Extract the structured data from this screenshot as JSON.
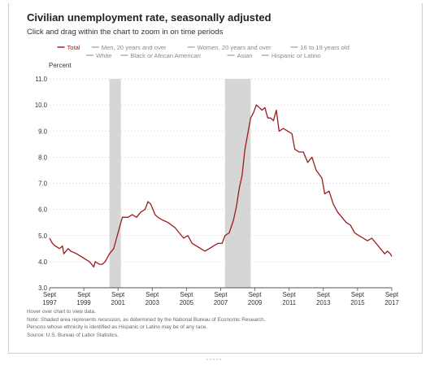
{
  "title": "Civilian unemployment rate, seasonally adjusted",
  "subtitle": "Click and drag within the chart to zoom in on time periods",
  "notes": [
    "Hover over chart to view data.",
    "Note: Shaded area represents recession, as determined by the National Bureau of Economic Research.",
    "Persons whose ethnicity is identified as Hispanic or Latino may be of any race.",
    "Source: U.S. Bureau of Labor Statistics."
  ],
  "colors": {
    "series": "#9b1b1e",
    "legend_inactive": "#8a8a8a",
    "recession": "#d6d6d6",
    "grid": "#d4d4d4",
    "axis": "#555555"
  },
  "chart_data": {
    "type": "line",
    "ylabel": "Percent",
    "ylim": [
      3.0,
      11.0
    ],
    "yticks": [
      "3.0",
      "4.0",
      "5.0",
      "6.0",
      "7.0",
      "8.0",
      "9.0",
      "10.0",
      "11.0"
    ],
    "xlim": [
      1997.667,
      2017.667
    ],
    "xticks": [
      {
        "x": 1997.667,
        "month": "Sept",
        "year": "1997"
      },
      {
        "x": 1999.667,
        "month": "Sept",
        "year": "1999"
      },
      {
        "x": 2001.667,
        "month": "Sept",
        "year": "2001"
      },
      {
        "x": 2003.667,
        "month": "Sept",
        "year": "2003"
      },
      {
        "x": 2005.667,
        "month": "Sept",
        "year": "2005"
      },
      {
        "x": 2007.667,
        "month": "Sept",
        "year": "2007"
      },
      {
        "x": 2009.667,
        "month": "Sept",
        "year": "2009"
      },
      {
        "x": 2011.667,
        "month": "Sept",
        "year": "2011"
      },
      {
        "x": 2013.667,
        "month": "Sept",
        "year": "2013"
      },
      {
        "x": 2015.667,
        "month": "Sept",
        "year": "2015"
      },
      {
        "x": 2017.667,
        "month": "Sept",
        "year": "2017"
      }
    ],
    "grid": true,
    "legend_position": "top",
    "legend": [
      {
        "name": "Total",
        "active": true
      },
      {
        "name": "Men, 20 years and over",
        "active": false
      },
      {
        "name": "Women, 20 years and over",
        "active": false
      },
      {
        "name": "16 to 19 years old",
        "active": false
      },
      {
        "name": "White",
        "active": false
      },
      {
        "name": "Black or African American",
        "active": false
      },
      {
        "name": "Asian",
        "active": false
      },
      {
        "name": "Hispanic or Latino",
        "active": false
      }
    ],
    "recessions": [
      [
        2001.167,
        2001.833
      ],
      [
        2007.917,
        2009.417
      ]
    ],
    "series": [
      {
        "name": "Total",
        "points": [
          [
            1997.667,
            4.9
          ],
          [
            1997.833,
            4.7
          ],
          [
            1998.0,
            4.6
          ],
          [
            1998.25,
            4.5
          ],
          [
            1998.417,
            4.6
          ],
          [
            1998.5,
            4.3
          ],
          [
            1998.75,
            4.5
          ],
          [
            1998.917,
            4.4
          ],
          [
            1999.25,
            4.3
          ],
          [
            1999.5,
            4.2
          ],
          [
            1999.75,
            4.1
          ],
          [
            2000.0,
            4.0
          ],
          [
            2000.25,
            3.8
          ],
          [
            2000.333,
            4.0
          ],
          [
            2000.583,
            3.9
          ],
          [
            2000.75,
            3.9
          ],
          [
            2000.917,
            4.0
          ],
          [
            2001.167,
            4.3
          ],
          [
            2001.417,
            4.5
          ],
          [
            2001.583,
            4.9
          ],
          [
            2001.75,
            5.3
          ],
          [
            2001.917,
            5.7
          ],
          [
            2002.25,
            5.7
          ],
          [
            2002.5,
            5.8
          ],
          [
            2002.75,
            5.7
          ],
          [
            2003.0,
            5.9
          ],
          [
            2003.25,
            6.0
          ],
          [
            2003.417,
            6.3
          ],
          [
            2003.583,
            6.2
          ],
          [
            2003.833,
            5.8
          ],
          [
            2004.0,
            5.7
          ],
          [
            2004.25,
            5.6
          ],
          [
            2004.583,
            5.5
          ],
          [
            2005.0,
            5.3
          ],
          [
            2005.25,
            5.1
          ],
          [
            2005.5,
            4.9
          ],
          [
            2005.75,
            5.0
          ],
          [
            2006.0,
            4.7
          ],
          [
            2006.25,
            4.6
          ],
          [
            2006.5,
            4.5
          ],
          [
            2006.75,
            4.4
          ],
          [
            2007.0,
            4.5
          ],
          [
            2007.25,
            4.6
          ],
          [
            2007.5,
            4.7
          ],
          [
            2007.75,
            4.7
          ],
          [
            2007.917,
            5.0
          ],
          [
            2008.167,
            5.1
          ],
          [
            2008.417,
            5.6
          ],
          [
            2008.583,
            6.1
          ],
          [
            2008.75,
            6.8
          ],
          [
            2008.917,
            7.3
          ],
          [
            2009.083,
            8.3
          ],
          [
            2009.25,
            8.9
          ],
          [
            2009.417,
            9.5
          ],
          [
            2009.583,
            9.7
          ],
          [
            2009.75,
            10.0
          ],
          [
            2009.917,
            9.9
          ],
          [
            2010.083,
            9.8
          ],
          [
            2010.25,
            9.9
          ],
          [
            2010.417,
            9.5
          ],
          [
            2010.583,
            9.5
          ],
          [
            2010.75,
            9.4
          ],
          [
            2010.917,
            9.8
          ],
          [
            2011.083,
            9.0
          ],
          [
            2011.333,
            9.1
          ],
          [
            2011.583,
            9.0
          ],
          [
            2011.833,
            8.9
          ],
          [
            2012.0,
            8.3
          ],
          [
            2012.25,
            8.2
          ],
          [
            2012.5,
            8.2
          ],
          [
            2012.75,
            7.8
          ],
          [
            2013.0,
            8.0
          ],
          [
            2013.25,
            7.5
          ],
          [
            2013.583,
            7.2
          ],
          [
            2013.75,
            6.6
          ],
          [
            2014.0,
            6.7
          ],
          [
            2014.25,
            6.2
          ],
          [
            2014.5,
            5.9
          ],
          [
            2014.75,
            5.7
          ],
          [
            2015.0,
            5.5
          ],
          [
            2015.25,
            5.4
          ],
          [
            2015.5,
            5.1
          ],
          [
            2015.75,
            5.0
          ],
          [
            2016.0,
            4.9
          ],
          [
            2016.25,
            4.8
          ],
          [
            2016.5,
            4.9
          ],
          [
            2016.75,
            4.7
          ],
          [
            2017.0,
            4.5
          ],
          [
            2017.25,
            4.3
          ],
          [
            2017.417,
            4.4
          ],
          [
            2017.583,
            4.3
          ],
          [
            2017.667,
            4.2
          ]
        ]
      }
    ]
  }
}
